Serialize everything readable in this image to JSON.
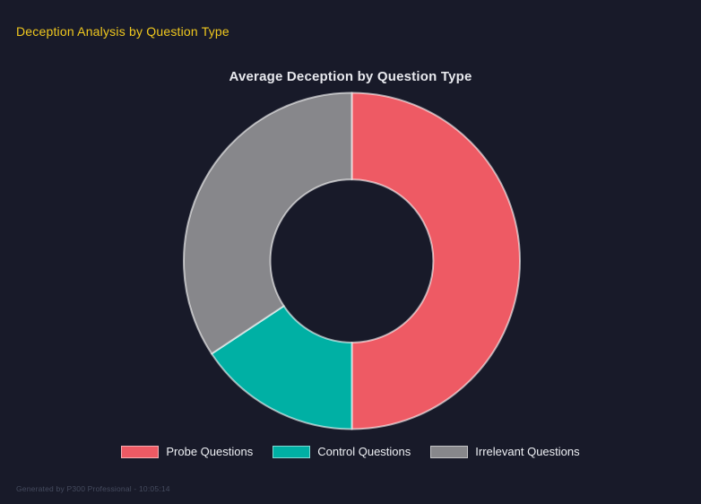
{
  "page": {
    "title": "Deception Analysis by Question Type",
    "footer": "Generated by P300 Professional - 10:05:14",
    "background_color": "#181a29",
    "title_color": "#f0c81e"
  },
  "chart_data": {
    "type": "pie",
    "variant": "doughnut",
    "title": "Average Deception by Question Type",
    "start_angle_deg": 0,
    "direction": "clockwise",
    "cutout_ratio": 0.485,
    "border_color": "rgba(255,255,255,0.6)",
    "legend_position": "bottom",
    "segments": [
      {
        "label": "Probe Questions",
        "percent": 50.0,
        "color": "#ee5a64"
      },
      {
        "label": "Control Questions",
        "percent": 15.7,
        "color": "#00b0a4"
      },
      {
        "label": "Irrelevant Questions",
        "percent": 34.3,
        "color": "#87878b"
      }
    ]
  }
}
